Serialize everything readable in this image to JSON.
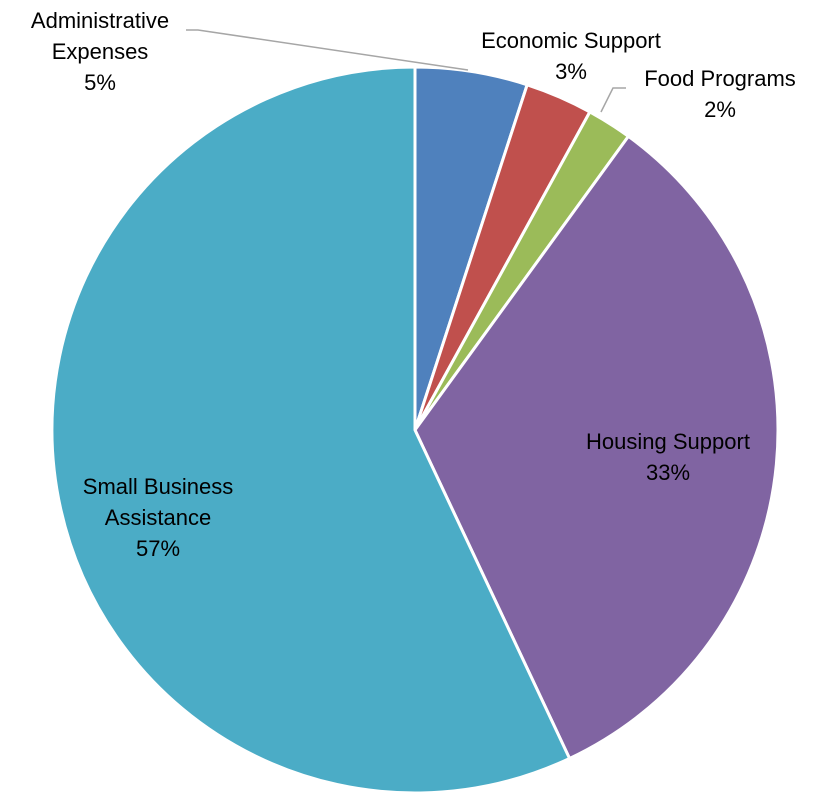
{
  "chart_data": {
    "type": "pie",
    "title": "",
    "start_angle_deg": 0,
    "direction": "clockwise",
    "slices": [
      {
        "name": "Administrative Expenses",
        "label_lines": [
          "Administrative",
          "Expenses"
        ],
        "value": 5,
        "value_label": "5%",
        "color": "#4f81bd",
        "label_position": "outside",
        "leader_line": true
      },
      {
        "name": "Economic Support",
        "label_lines": [
          "Economic Support"
        ],
        "value": 3,
        "value_label": "3%",
        "color": "#c0504d",
        "label_position": "outside",
        "leader_line": false
      },
      {
        "name": "Food Programs",
        "label_lines": [
          "Food Programs"
        ],
        "value": 2,
        "value_label": "2%",
        "color": "#9bbb59",
        "label_position": "outside",
        "leader_line": true
      },
      {
        "name": "Housing Support",
        "label_lines": [
          "Housing Support"
        ],
        "value": 33,
        "value_label": "33%",
        "color": "#8064a2",
        "label_position": "inside",
        "leader_line": false
      },
      {
        "name": "Small Business Assistance",
        "label_lines": [
          "Small Business",
          "Assistance"
        ],
        "value": 57,
        "value_label": "57%",
        "color": "#4bacc6",
        "label_position": "inside",
        "leader_line": false
      }
    ]
  }
}
